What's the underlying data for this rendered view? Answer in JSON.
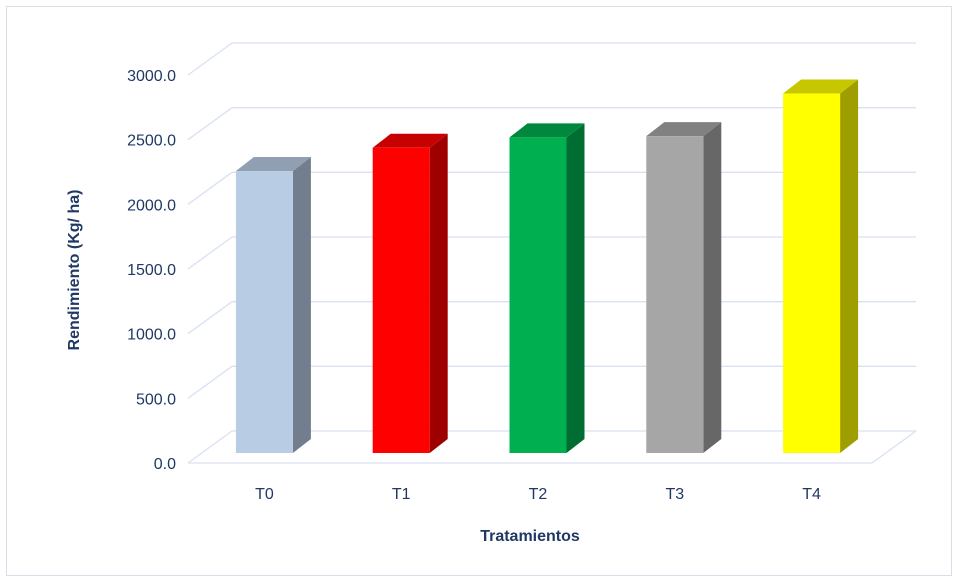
{
  "chart_data": {
    "type": "bar",
    "style": "3d-column",
    "categories": [
      "T0",
      "T1",
      "T2",
      "T3",
      "T4"
    ],
    "values": [
      2180,
      2360,
      2440,
      2450,
      2780
    ],
    "colors": [
      "#b8cce4",
      "#ff0000",
      "#00b050",
      "#a6a6a6",
      "#ffff00"
    ],
    "xlabel": "Tratamientos",
    "ylabel": "Rendimiento (Kg/ ha)",
    "ylim": [
      0,
      3000
    ],
    "yticks": [
      "0.0",
      "500.0",
      "1000.0",
      "1500.0",
      "2000.0",
      "2500.0",
      "3000.0"
    ],
    "grid": true,
    "grid_color": "#d9e1f2",
    "text_color": "#1f3864"
  }
}
